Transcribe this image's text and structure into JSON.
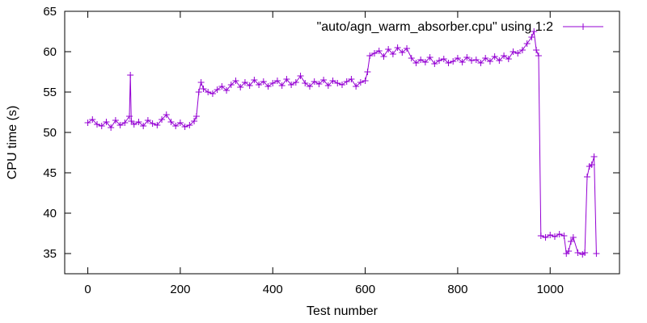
{
  "chart_data": {
    "type": "line",
    "title": "",
    "xlabel": "Test number",
    "ylabel": "CPU time (s)",
    "xlim": [
      -50,
      1150
    ],
    "ylim": [
      32.5,
      65
    ],
    "xticks": [
      0,
      200,
      400,
      600,
      800,
      1000
    ],
    "yticks": [
      35,
      40,
      45,
      50,
      55,
      60,
      65
    ],
    "grid": false,
    "legend_position": "top-right",
    "series": [
      {
        "name": "\"auto/agn_warm_absorber.cpu\" using 1:2",
        "color": "#9400d3",
        "marker": "plus",
        "x": [
          0,
          10,
          20,
          30,
          40,
          50,
          60,
          70,
          80,
          90,
          92,
          94,
          100,
          110,
          120,
          130,
          140,
          150,
          160,
          170,
          180,
          190,
          200,
          210,
          220,
          230,
          235,
          240,
          245,
          250,
          260,
          270,
          280,
          290,
          300,
          310,
          320,
          330,
          340,
          350,
          360,
          370,
          380,
          390,
          400,
          410,
          420,
          430,
          440,
          450,
          460,
          470,
          480,
          490,
          500,
          510,
          520,
          530,
          540,
          550,
          560,
          570,
          580,
          590,
          600,
          605,
          610,
          620,
          630,
          640,
          650,
          660,
          670,
          680,
          690,
          700,
          710,
          720,
          730,
          740,
          750,
          760,
          770,
          780,
          790,
          800,
          810,
          820,
          830,
          840,
          850,
          860,
          870,
          880,
          890,
          900,
          910,
          920,
          930,
          940,
          950,
          960,
          965,
          970,
          975,
          980,
          990,
          1000,
          1010,
          1020,
          1030,
          1035,
          1040,
          1045,
          1050,
          1060,
          1070,
          1075,
          1080,
          1085,
          1090,
          1095,
          1100
        ],
        "y": [
          51.2,
          51.6,
          51.0,
          50.8,
          51.3,
          50.6,
          51.5,
          50.9,
          51.2,
          52.0,
          57.1,
          51.4,
          51.0,
          51.3,
          50.8,
          51.5,
          51.1,
          50.9,
          51.6,
          52.2,
          51.3,
          50.8,
          51.2,
          50.7,
          50.9,
          51.4,
          52.0,
          55.0,
          56.2,
          55.4,
          55.0,
          54.8,
          55.3,
          55.7,
          55.2,
          55.9,
          56.4,
          55.6,
          56.2,
          55.8,
          56.5,
          55.9,
          56.3,
          55.7,
          56.1,
          56.4,
          55.8,
          56.6,
          55.9,
          56.2,
          57.0,
          56.1,
          55.7,
          56.3,
          56.0,
          56.5,
          55.8,
          56.4,
          56.1,
          55.9,
          56.3,
          56.6,
          55.7,
          56.2,
          56.4,
          57.5,
          59.5,
          59.8,
          60.1,
          59.4,
          60.3,
          59.7,
          60.5,
          59.9,
          60.4,
          59.2,
          58.6,
          59.0,
          58.7,
          59.3,
          58.5,
          58.9,
          59.1,
          58.6,
          58.8,
          59.2,
          58.7,
          59.3,
          58.9,
          59.0,
          58.6,
          59.2,
          58.8,
          59.4,
          58.9,
          59.5,
          59.1,
          60.0,
          59.8,
          60.2,
          61.0,
          61.8,
          62.5,
          60.2,
          59.5,
          37.2,
          37.0,
          37.3,
          37.1,
          37.4,
          37.2,
          35.0,
          35.3,
          36.5,
          37.0,
          35.1,
          34.9,
          35.1,
          44.5,
          45.8,
          46.0,
          47.0,
          35.0
        ]
      }
    ]
  }
}
